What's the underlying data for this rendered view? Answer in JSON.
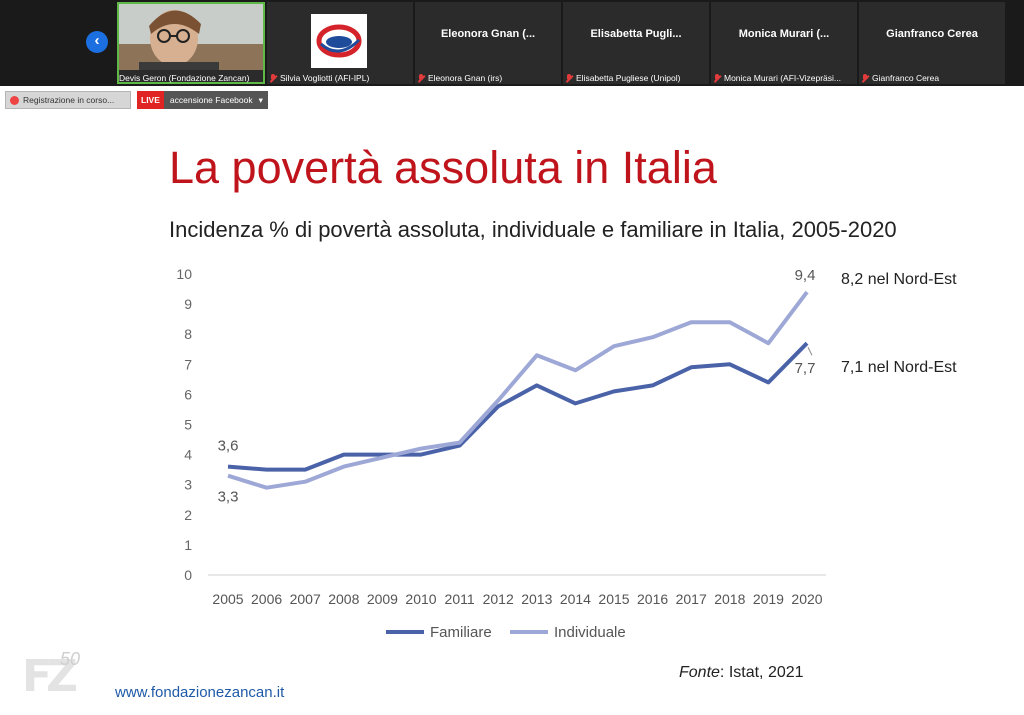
{
  "participants": [
    {
      "caption": "Devis Geron (Fondazione Zancan)",
      "muted": false
    },
    {
      "caption": "Silvia Vogliotti (AFI-IPL)",
      "muted": true
    },
    {
      "name": "Eleonora Gnan (...",
      "caption": "Eleonora Gnan (irs)",
      "muted": true
    },
    {
      "name": "Elisabetta Pugli...",
      "caption": "Elisabetta Pugliese (Unipol)",
      "muted": true
    },
    {
      "name": "Monica Murari (...",
      "caption": "Monica Murari (AFI-Vizepräsi...",
      "muted": true
    },
    {
      "name": "Gianfranco Cerea",
      "caption": "Gianfranco Cerea",
      "muted": true
    }
  ],
  "toolbar": {
    "recording_label": "Registrazione in corso...",
    "live_tag": "LIVE",
    "live_label": "accensione Facebook",
    "live_caret": "▾"
  },
  "slide": {
    "title": "La povertà assoluta in Italia",
    "subtitle": "Incidenza % di povertà assoluta, individuale e familiare in Italia, 2005-2020",
    "source_label": "Fonte",
    "source_value": ": Istat, 2021",
    "website": "www.fondazionezancan.it",
    "logo_text": "FZ",
    "logo_suffix": "50"
  },
  "colors": {
    "title_red": "#c0141c",
    "familiare": "#4a62a8",
    "individuale": "#9ea8d6",
    "accent_blue": "#1c6fe0"
  },
  "chart_data": {
    "type": "line",
    "x": [
      "2005",
      "2006",
      "2007",
      "2008",
      "2009",
      "2010",
      "2011",
      "2012",
      "2013",
      "2014",
      "2015",
      "2016",
      "2017",
      "2018",
      "2019",
      "2020"
    ],
    "ylim": [
      0,
      10
    ],
    "yticks": [
      "0",
      "1",
      "2",
      "3",
      "4",
      "5",
      "6",
      "7",
      "8",
      "9",
      "10"
    ],
    "grid": false,
    "legend_position": "bottom",
    "series": [
      {
        "name": "Familiare",
        "values": [
          3.6,
          3.5,
          3.5,
          4.0,
          4.0,
          4.0,
          4.3,
          5.6,
          6.3,
          5.7,
          6.1,
          6.3,
          6.9,
          7.0,
          6.4,
          7.7
        ]
      },
      {
        "name": "Individuale",
        "values": [
          3.3,
          2.9,
          3.1,
          3.6,
          3.9,
          4.2,
          4.4,
          5.8,
          7.3,
          6.8,
          7.6,
          7.9,
          8.4,
          8.4,
          7.7,
          9.4
        ]
      }
    ],
    "data_labels": {
      "familiare_start": "3,6",
      "individuale_start": "3,3",
      "individuale_end": "9,4",
      "familiare_end": "7,7"
    },
    "annotations": {
      "individuale_nord_est": "8,2 nel Nord-Est",
      "familiare_nord_est": "7,1 nel Nord-Est"
    }
  }
}
